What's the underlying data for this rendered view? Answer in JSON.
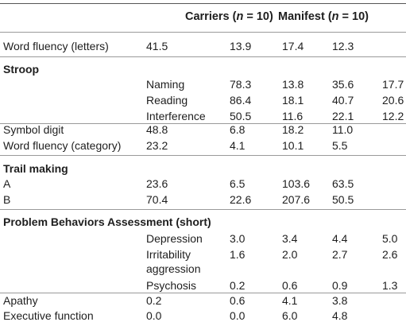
{
  "header": {
    "carriers_prefix": "Carriers (",
    "carriers_n": "n",
    "carriers_suffix": " = 10)",
    "manifest_prefix": "Manifest (",
    "manifest_n": "n",
    "manifest_suffix": " = 10)"
  },
  "rows": {
    "word_fluency_letters": {
      "label": "Word fluency (letters)",
      "v1": "41.5",
      "v2": "13.9",
      "v3": "17.4",
      "v4": "12.3"
    },
    "stroop": {
      "heading": "Stroop",
      "naming": {
        "label": "Naming",
        "v1": "78.3",
        "v2": "13.8",
        "v3": "35.6",
        "v4": "17.7"
      },
      "reading": {
        "label": "Reading",
        "v1": "86.4",
        "v2": "18.1",
        "v3": "40.7",
        "v4": "20.6"
      },
      "interference": {
        "label": "Interference",
        "v1": "50.5",
        "v2": "11.6",
        "v3": "22.1",
        "v4": "12.2"
      }
    },
    "symbol_digit": {
      "label": "Symbol digit",
      "v1": "48.8",
      "v2": "6.8",
      "v3": "18.2",
      "v4": "11.0"
    },
    "word_fluency_category": {
      "label": "Word fluency (category)",
      "v1": "23.2",
      "v2": "4.1",
      "v3": "10.1",
      "v4": "5.5"
    },
    "trail_making": {
      "heading": "Trail making",
      "a": {
        "label": "A",
        "v1": "23.6",
        "v2": "6.5",
        "v3": "103.6",
        "v4": "63.5"
      },
      "b": {
        "label": "B",
        "v1": "70.4",
        "v2": "22.6",
        "v3": "207.6",
        "v4": "50.5"
      }
    },
    "pba": {
      "heading": "Problem Behaviors Assessment (short)",
      "depression": {
        "label": "Depression",
        "v1": "3.0",
        "v2": "3.4",
        "v3": "4.4",
        "v4": "5.0"
      },
      "irritability": {
        "label_line1": "Irritability",
        "label_line2": "aggression",
        "v1": "1.6",
        "v2": "2.0",
        "v3": "2.7",
        "v4": "2.6"
      },
      "psychosis": {
        "label": "Psychosis",
        "v1": "0.2",
        "v2": "0.6",
        "v3": "0.9",
        "v4": "1.3"
      }
    },
    "apathy": {
      "label": "Apathy",
      "v1": "0.2",
      "v2": "0.6",
      "v3": "4.1",
      "v4": "3.8"
    },
    "executive_function": {
      "label": "Executive function",
      "v1": "0.0",
      "v2": "0.0",
      "v3": "6.0",
      "v4": "4.8"
    }
  }
}
